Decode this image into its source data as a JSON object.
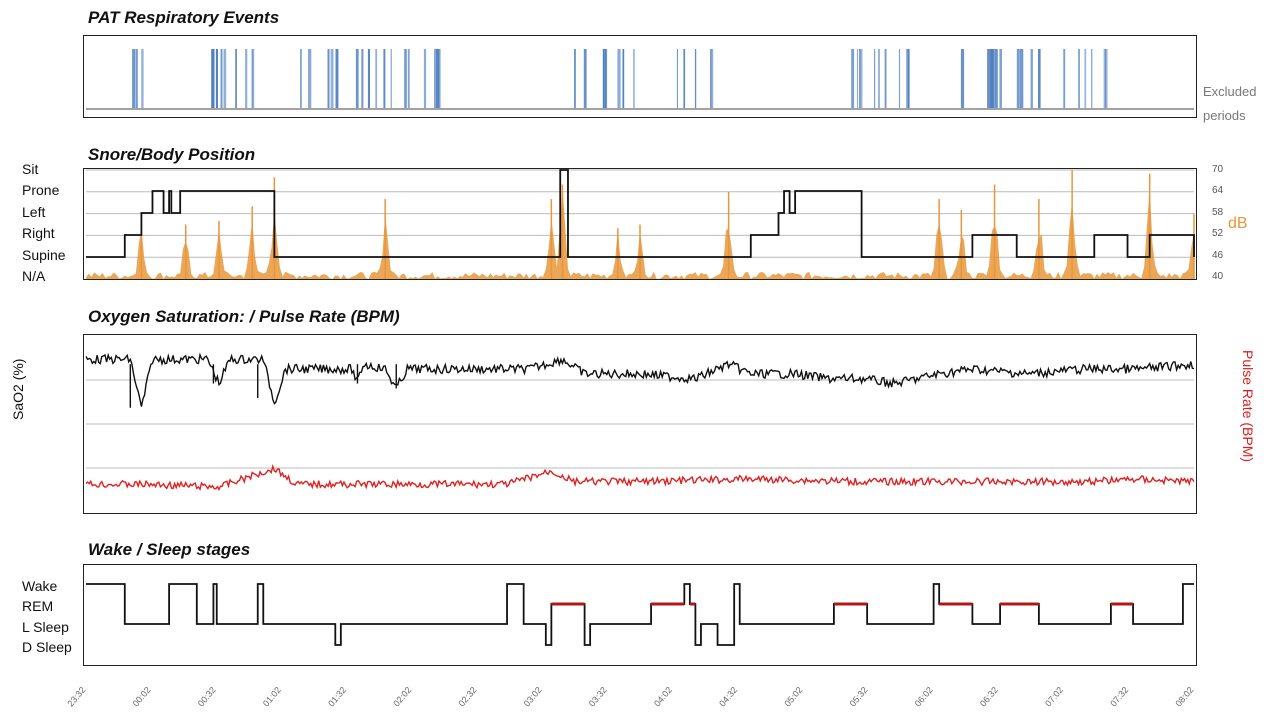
{
  "panels": {
    "respiratory": {
      "title": "PAT  Respiratory Events",
      "excluded_label_1": "Excluded",
      "excluded_label_2": "periods"
    },
    "snore": {
      "title": "Snore/Body Position",
      "positions": [
        "Sit",
        "Prone",
        "Left",
        "Right",
        "Supine",
        "N/A"
      ],
      "db_ticks": [
        "70",
        "64",
        "58",
        "52",
        "46",
        "40"
      ],
      "db_label": "dB"
    },
    "oxygen": {
      "title": "Oxygen Saturation: / Pulse Rate (BPM)",
      "left_axis": "SaO2 (%)",
      "right_axis": "Pulse Rate (BPM)"
    },
    "sleep": {
      "title": "Wake / Sleep stages",
      "stages": [
        "Wake",
        "REM",
        "L Sleep",
        "D Sleep"
      ]
    }
  },
  "time_ticks": [
    "23:32",
    "00:02",
    "00:32",
    "01:02",
    "01:32",
    "02:02",
    "02:32",
    "03:02",
    "03:32",
    "04:02",
    "04:32",
    "05:02",
    "05:32",
    "06:02",
    "06:32",
    "07:02",
    "07:32",
    "08:02"
  ],
  "colors": {
    "events": "#4f7fbf",
    "snore": "#e8963a",
    "position": "#111111",
    "spo2": "#111111",
    "pulse": "#e02020",
    "rem": "#b01818",
    "grid": "#bbbbbb"
  },
  "chart_data": [
    {
      "type": "bar",
      "title": "PAT  Respiratory Events",
      "event_clusters": [
        [
          0.04,
          0.06
        ],
        [
          0.11,
          0.17
        ],
        [
          0.19,
          0.32
        ],
        [
          0.44,
          0.5
        ],
        [
          0.53,
          0.57
        ],
        [
          0.69,
          0.76
        ],
        [
          0.78,
          0.86
        ],
        [
          0.88,
          0.92
        ]
      ],
      "x_range_fraction": [
        0,
        1
      ]
    },
    {
      "type": "line",
      "title": "Snore/Body Position",
      "position_levels": [
        "N/A",
        "Supine",
        "Right",
        "Left",
        "Prone",
        "Sit"
      ],
      "position_steps": [
        [
          0,
          1
        ],
        [
          0.035,
          2
        ],
        [
          0.05,
          3
        ],
        [
          0.06,
          4
        ],
        [
          0.07,
          3
        ],
        [
          0.075,
          4
        ],
        [
          0.077,
          3
        ],
        [
          0.085,
          4
        ],
        [
          0.17,
          1
        ],
        [
          0.425,
          1
        ],
        [
          0.428,
          5
        ],
        [
          0.435,
          1
        ],
        [
          0.58,
          1
        ],
        [
          0.6,
          2
        ],
        [
          0.625,
          3
        ],
        [
          0.63,
          4
        ],
        [
          0.635,
          3
        ],
        [
          0.64,
          4
        ],
        [
          0.7,
          1
        ],
        [
          0.72,
          1
        ],
        [
          0.715,
          1
        ],
        [
          0.79,
          1
        ],
        [
          0.8,
          2
        ],
        [
          0.84,
          1
        ],
        [
          0.89,
          1
        ],
        [
          0.91,
          2
        ],
        [
          0.94,
          1
        ],
        [
          0.96,
          2
        ],
        [
          1,
          1
        ]
      ],
      "db_range": [
        40,
        70
      ],
      "snore_bursts": [
        [
          0.05,
          58
        ],
        [
          0.09,
          55
        ],
        [
          0.12,
          56
        ],
        [
          0.15,
          60
        ],
        [
          0.17,
          68
        ],
        [
          0.27,
          62
        ],
        [
          0.42,
          62
        ],
        [
          0.43,
          66
        ],
        [
          0.48,
          54
        ],
        [
          0.5,
          55
        ],
        [
          0.58,
          64
        ],
        [
          0.77,
          62
        ],
        [
          0.79,
          59
        ],
        [
          0.82,
          66
        ],
        [
          0.86,
          62
        ],
        [
          0.89,
          70
        ],
        [
          0.96,
          69
        ],
        [
          1,
          58
        ]
      ]
    },
    {
      "type": "line",
      "title": "Oxygen Saturation: / Pulse Rate (BPM)",
      "spo2_series": [
        [
          0,
          96
        ],
        [
          0.04,
          96
        ],
        [
          0.05,
          86
        ],
        [
          0.06,
          96
        ],
        [
          0.11,
          96
        ],
        [
          0.12,
          91
        ],
        [
          0.13,
          96
        ],
        [
          0.16,
          96
        ],
        [
          0.17,
          87
        ],
        [
          0.18,
          94
        ],
        [
          0.24,
          94
        ],
        [
          0.245,
          91
        ],
        [
          0.25,
          95
        ],
        [
          0.27,
          94
        ],
        [
          0.28,
          90
        ],
        [
          0.29,
          94
        ],
        [
          0.35,
          94
        ],
        [
          0.4,
          94
        ],
        [
          0.43,
          96
        ],
        [
          0.45,
          93
        ],
        [
          0.5,
          93
        ],
        [
          0.55,
          92
        ],
        [
          0.58,
          95
        ],
        [
          0.6,
          93
        ],
        [
          0.64,
          93
        ],
        [
          0.67,
          92
        ],
        [
          0.7,
          92
        ],
        [
          0.73,
          91
        ],
        [
          0.77,
          93
        ],
        [
          0.8,
          94
        ],
        [
          0.85,
          93
        ],
        [
          0.9,
          94
        ],
        [
          0.95,
          94
        ],
        [
          1,
          95
        ]
      ],
      "pulse_series": [
        [
          0,
          64
        ],
        [
          0.05,
          64
        ],
        [
          0.12,
          63
        ],
        [
          0.17,
          70
        ],
        [
          0.19,
          64
        ],
        [
          0.3,
          64
        ],
        [
          0.38,
          64
        ],
        [
          0.42,
          69
        ],
        [
          0.44,
          65
        ],
        [
          0.5,
          65
        ],
        [
          0.6,
          66
        ],
        [
          0.7,
          65
        ],
        [
          0.8,
          65
        ],
        [
          0.9,
          65
        ],
        [
          0.95,
          66
        ],
        [
          1,
          65
        ]
      ],
      "spo2_range": [
        80,
        100
      ],
      "pulse_range": [
        55,
        85
      ]
    },
    {
      "type": "line",
      "title": "Wake / Sleep stages",
      "stage_levels": [
        "D Sleep",
        "L Sleep",
        "REM",
        "Wake"
      ],
      "stage_steps": [
        [
          0,
          3
        ],
        [
          0.035,
          1
        ],
        [
          0.07,
          1
        ],
        [
          0.075,
          3
        ],
        [
          0.1,
          1
        ],
        [
          0.115,
          3
        ],
        [
          0.118,
          1
        ],
        [
          0.15,
          1
        ],
        [
          0.155,
          3
        ],
        [
          0.16,
          1
        ],
        [
          0.22,
          1
        ],
        [
          0.225,
          0
        ],
        [
          0.23,
          1
        ],
        [
          0.375,
          1
        ],
        [
          0.38,
          3
        ],
        [
          0.395,
          1
        ],
        [
          0.41,
          1
        ],
        [
          0.415,
          0
        ],
        [
          0.42,
          2
        ],
        [
          0.445,
          2
        ],
        [
          0.45,
          0
        ],
        [
          0.455,
          1
        ],
        [
          0.5,
          1
        ],
        [
          0.51,
          2
        ],
        [
          0.535,
          2
        ],
        [
          0.54,
          3
        ],
        [
          0.545,
          2
        ],
        [
          0.55,
          0
        ],
        [
          0.555,
          1
        ],
        [
          0.565,
          1
        ],
        [
          0.57,
          0
        ],
        [
          0.58,
          0
        ],
        [
          0.585,
          3
        ],
        [
          0.59,
          1
        ],
        [
          0.67,
          1
        ],
        [
          0.675,
          2
        ],
        [
          0.7,
          2
        ],
        [
          0.705,
          1
        ],
        [
          0.76,
          1
        ],
        [
          0.765,
          3
        ],
        [
          0.77,
          2
        ],
        [
          0.79,
          2
        ],
        [
          0.8,
          1
        ],
        [
          0.82,
          1
        ],
        [
          0.825,
          2
        ],
        [
          0.85,
          2
        ],
        [
          0.86,
          1
        ],
        [
          0.92,
          1
        ],
        [
          0.925,
          2
        ],
        [
          0.94,
          2
        ],
        [
          0.945,
          1
        ],
        [
          0.985,
          1
        ],
        [
          0.99,
          3
        ],
        [
          1,
          3
        ]
      ]
    }
  ]
}
